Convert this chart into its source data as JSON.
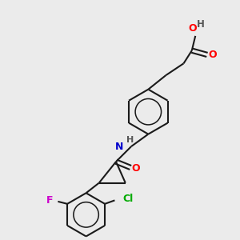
{
  "background_color": "#ebebeb",
  "bond_color": "#1a1a1a",
  "atom_colors": {
    "O": "#ff0000",
    "N": "#0000cc",
    "F": "#cc00cc",
    "Cl": "#00aa00",
    "H": "#555555",
    "C": "#1a1a1a"
  },
  "figsize": [
    3.0,
    3.0
  ],
  "dpi": 100
}
